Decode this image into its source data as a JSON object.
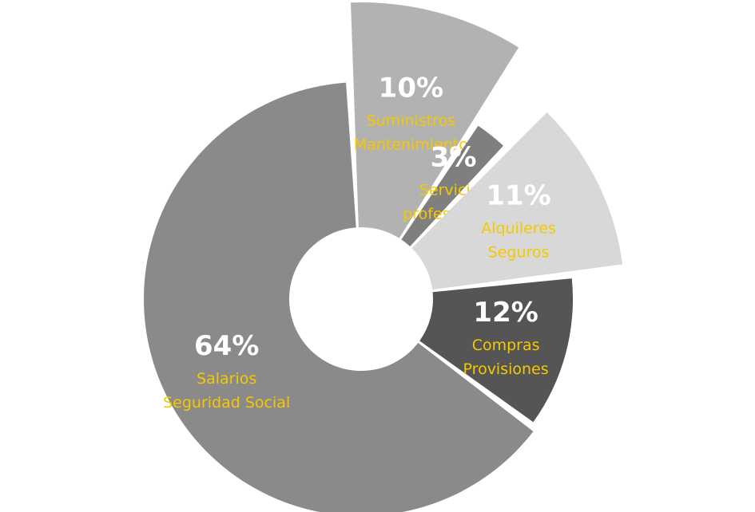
{
  "chart_data": {
    "type": "pie",
    "categories": [
      [
        "Suministros",
        "Mantenimiento"
      ],
      [
        "Servicios",
        "profesionales"
      ],
      [
        "Alquileres",
        "Seguros"
      ],
      [
        "Compras",
        "Provisiones"
      ],
      [
        "Salarios",
        "Seguridad Social"
      ]
    ],
    "values": [
      10,
      3,
      11,
      12,
      64
    ],
    "value_labels": [
      "10%",
      "3%",
      "11%",
      "12%",
      "64%"
    ],
    "colors": [
      "#b2b2b2",
      "#7f7f7f",
      "#d8d8d8",
      "#555555",
      "#8a8a8a"
    ]
  }
}
